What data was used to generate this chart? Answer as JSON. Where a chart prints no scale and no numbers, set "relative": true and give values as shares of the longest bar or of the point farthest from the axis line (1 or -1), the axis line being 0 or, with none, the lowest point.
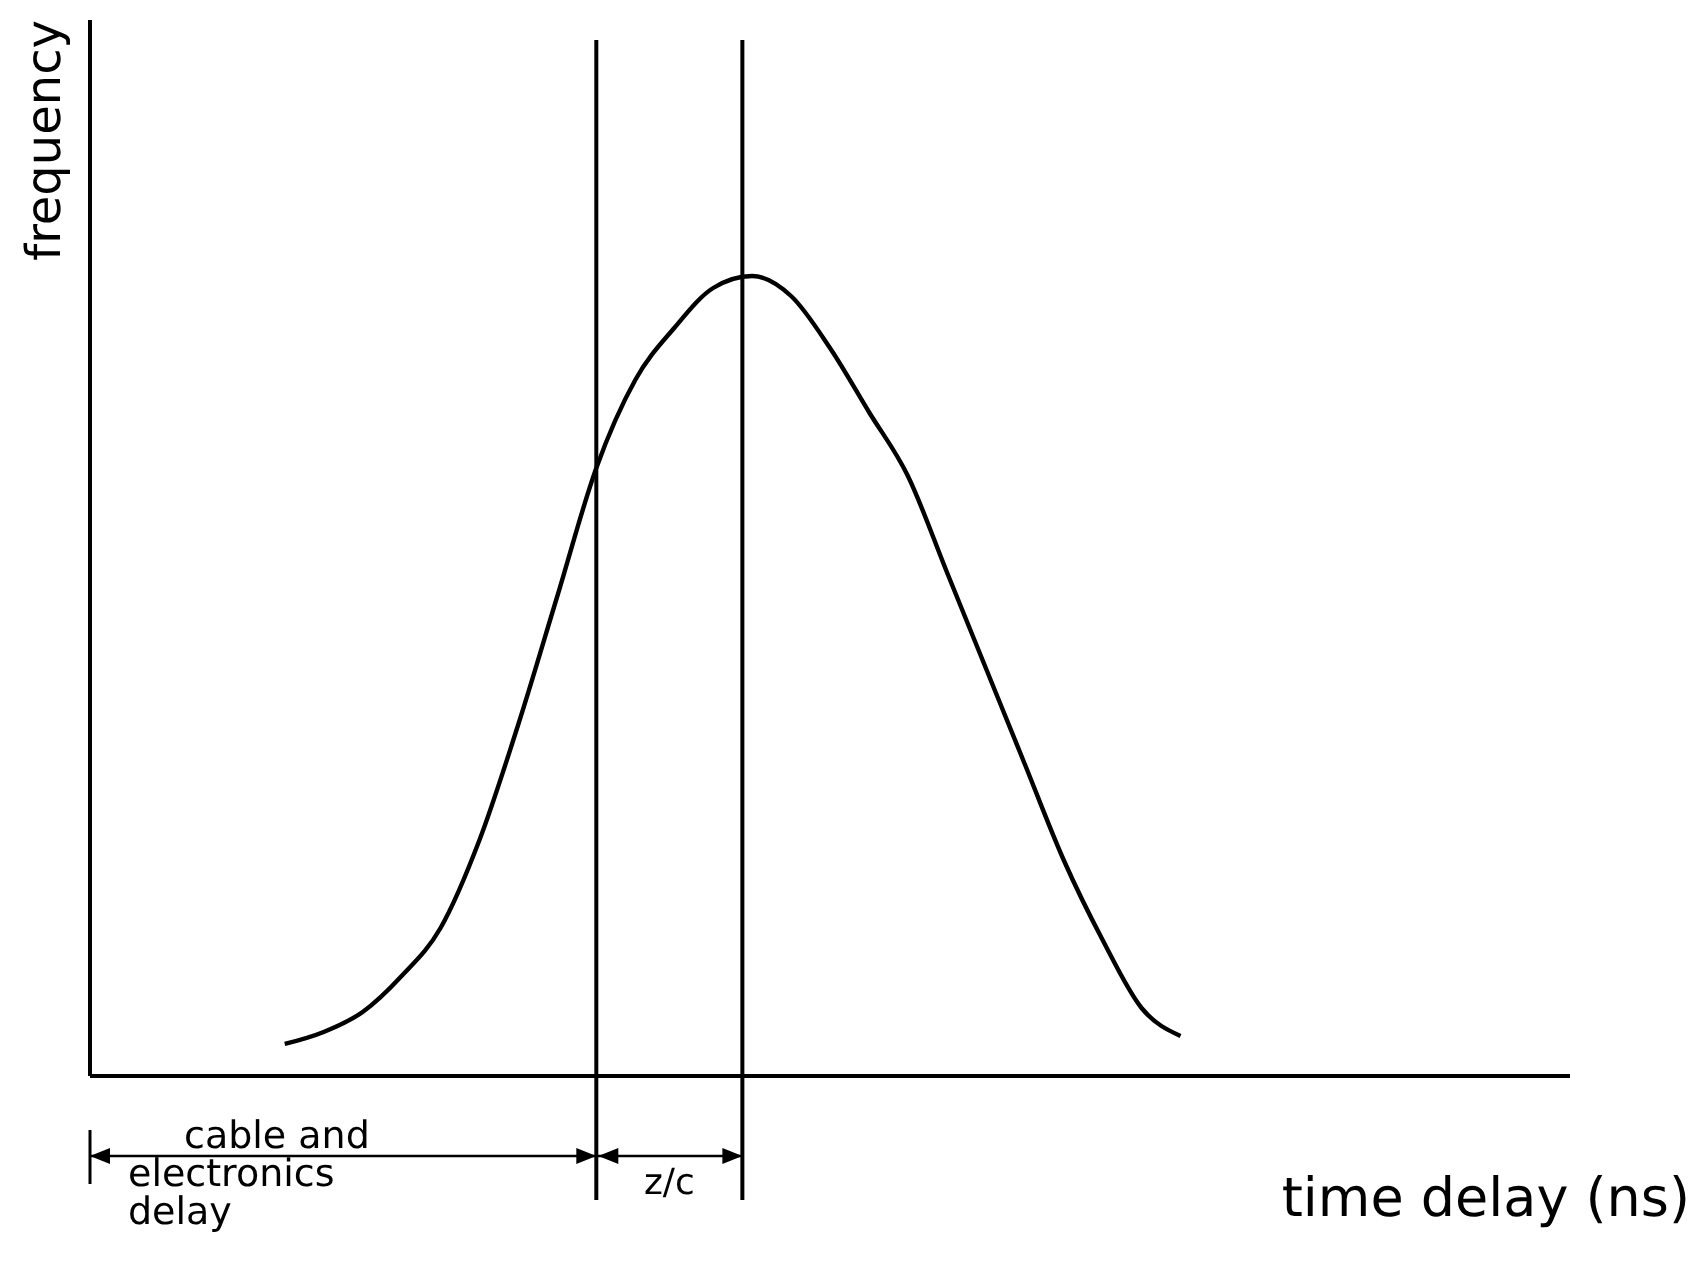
{
  "chart_data": {
    "type": "line",
    "relative": true,
    "xlabel": "time delay (ns)",
    "ylabel": "frequency",
    "color": "#000000",
    "line_style": "solid",
    "categories": [
      null,
      null,
      null,
      null,
      null,
      null,
      null,
      null,
      null,
      null,
      null,
      null,
      null,
      null,
      null,
      null,
      null,
      null,
      null,
      null,
      null,
      null,
      null,
      null,
      null,
      null,
      null,
      null,
      null,
      null,
      null,
      null,
      null,
      null,
      null,
      null,
      null,
      null
    ],
    "values": [
      null,
      null,
      null,
      null,
      null,
      0.04,
      0.055,
      0.08,
      0.125,
      0.185,
      0.295,
      0.44,
      0.6,
      0.76,
      0.87,
      0.935,
      0.985,
      1,
      0.975,
      0.91,
      0.83,
      0.75,
      0.63,
      0.51,
      0.39,
      0.27,
      0.17,
      0.085,
      0.05,
      null,
      null,
      null,
      null,
      null,
      null,
      null,
      null,
      null
    ],
    "annotations": [
      "cable and electronics delay",
      "z/c"
    ]
  }
}
